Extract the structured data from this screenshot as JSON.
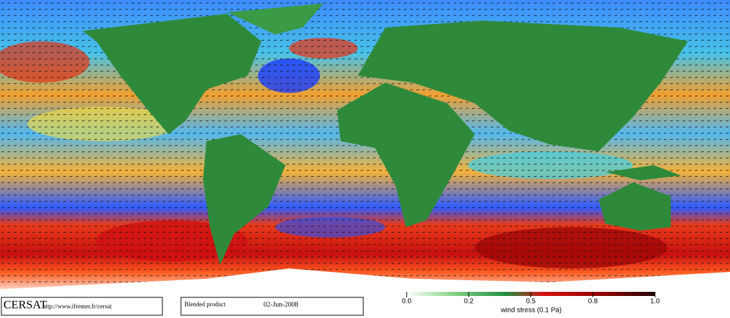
{
  "footer": {
    "logo": "CERSAT",
    "url": "http://www.ifremer.fr/cersat",
    "product": "Blended product",
    "date": "02-Jun-2008"
  },
  "colorbar": {
    "label": "wind stress (0.1 Pa)",
    "ticks": [
      {
        "value": 0,
        "label": "0.0"
      },
      0.2,
      0.5,
      0.8,
      {
        "value": 1,
        "label": "1.0"
      }
    ]
  }
}
